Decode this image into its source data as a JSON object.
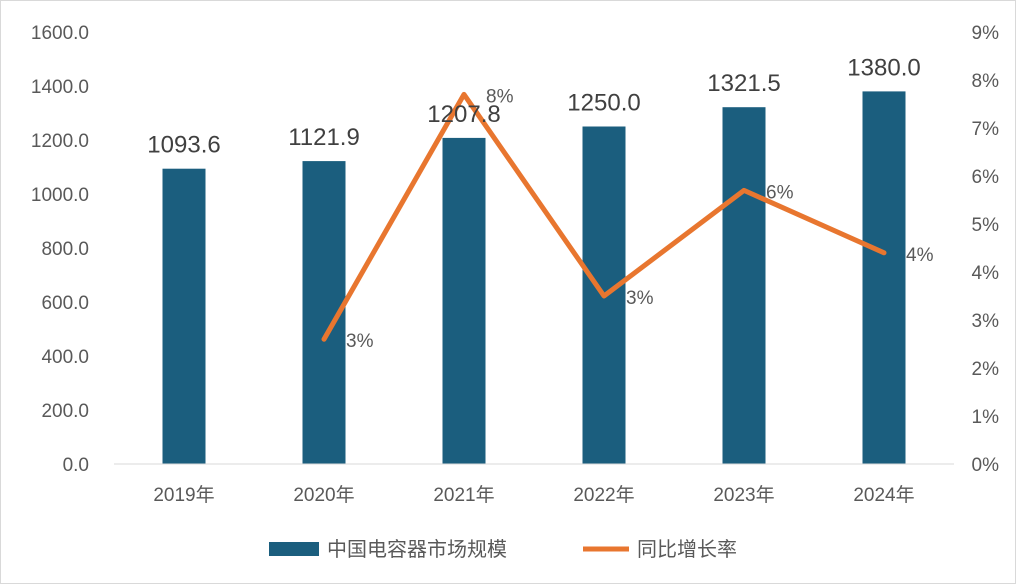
{
  "chart_data": {
    "type": "bar",
    "categories": [
      "2019年",
      "2020年",
      "2021年",
      "2022年",
      "2023年",
      "2024年"
    ],
    "series": [
      {
        "name": "中国电容器市场规模",
        "type": "bar",
        "axis": "left",
        "values": [
          1093.6,
          1121.9,
          1207.8,
          1250.0,
          1321.5,
          1380.0
        ],
        "labels": [
          "1093.6",
          "1121.9",
          "1207.8",
          "1250.0",
          "1321.5",
          "1380.0"
        ],
        "color": "#1b5e7e"
      },
      {
        "name": "同比增长率",
        "type": "line",
        "axis": "right",
        "values": [
          null,
          2.6,
          7.7,
          3.5,
          5.7,
          4.4
        ],
        "labels": [
          "",
          "3%",
          "8%",
          "3%",
          "6%",
          "4%"
        ],
        "color": "#e8762f"
      }
    ],
    "left_axis": {
      "min": 0,
      "max": 1600,
      "step": 200,
      "ticks": [
        "0.0",
        "200.0",
        "400.0",
        "600.0",
        "800.0",
        "1000.0",
        "1200.0",
        "1400.0",
        "1600.0"
      ]
    },
    "right_axis": {
      "min": 0,
      "max": 9,
      "step": 1,
      "ticks": [
        "0%",
        "1%",
        "2%",
        "3%",
        "4%",
        "5%",
        "6%",
        "7%",
        "8%",
        "9%"
      ]
    },
    "grid": false,
    "legend_position": "bottom"
  }
}
